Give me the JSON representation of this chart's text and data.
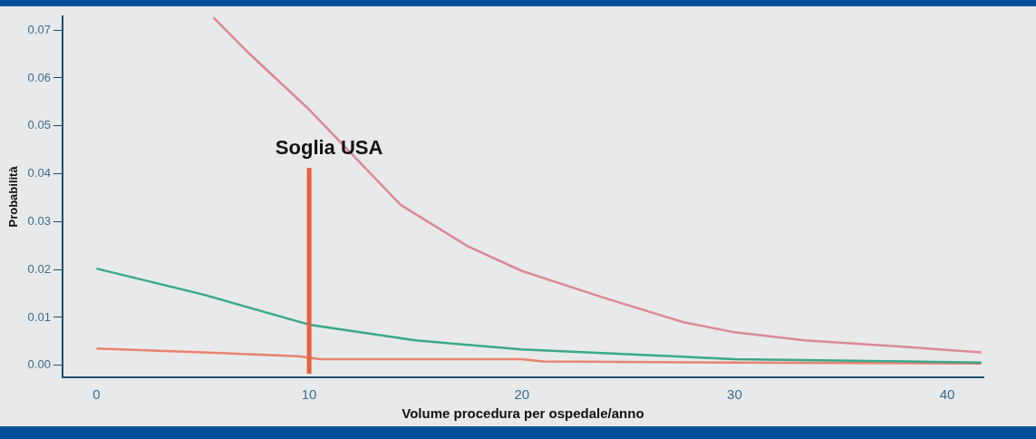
{
  "chart_data": {
    "type": "line",
    "xlabel": "Volume procedura per ospedale/anno",
    "ylabel": "Probabilità",
    "xlim": [
      -1.6,
      41.7
    ],
    "xticks": [
      0,
      10,
      20,
      30,
      40
    ],
    "ylim": [
      -0.0025,
      0.0729
    ],
    "yticks": [
      {
        "value": 0,
        "label": "0.00"
      },
      0.01,
      0.02,
      0.03,
      0.04,
      0.05,
      0.06,
      0.07
    ],
    "grid": false,
    "legend": false,
    "marker": "none",
    "line_style": "solid",
    "series": [
      {
        "color": "#d98a94",
        "x": [
          5.5,
          7.2,
          10,
          14.3,
          17.4,
          20,
          24,
          27.6,
          30,
          33.3,
          37.9,
          41.6
        ],
        "values": [
          0.0726,
          0.065,
          0.0534,
          0.0335,
          0.025,
          0.0197,
          0.0139,
          0.009,
          0.0069,
          0.0052,
          0.0039,
          0.0027
        ]
      },
      {
        "color": "#3aa88a",
        "x": [
          0,
          5,
          10,
          15,
          20,
          30,
          41.6
        ],
        "values": [
          0.0202,
          0.0148,
          0.0085,
          0.0052,
          0.0033,
          0.0013,
          0.0006
        ]
      },
      {
        "color": "#e8826e",
        "x": [
          0,
          5,
          9.5,
          10.5,
          20,
          21,
          30,
          41.6
        ],
        "values": [
          0.0035,
          0.0027,
          0.0019,
          0.0013,
          0.0013,
          0.0008,
          0.0006,
          0.0004
        ]
      }
    ],
    "ref_lines": [
      {
        "axis": "x",
        "value": 10,
        "label": "Soglia USA",
        "color": "#e8603c"
      }
    ]
  }
}
